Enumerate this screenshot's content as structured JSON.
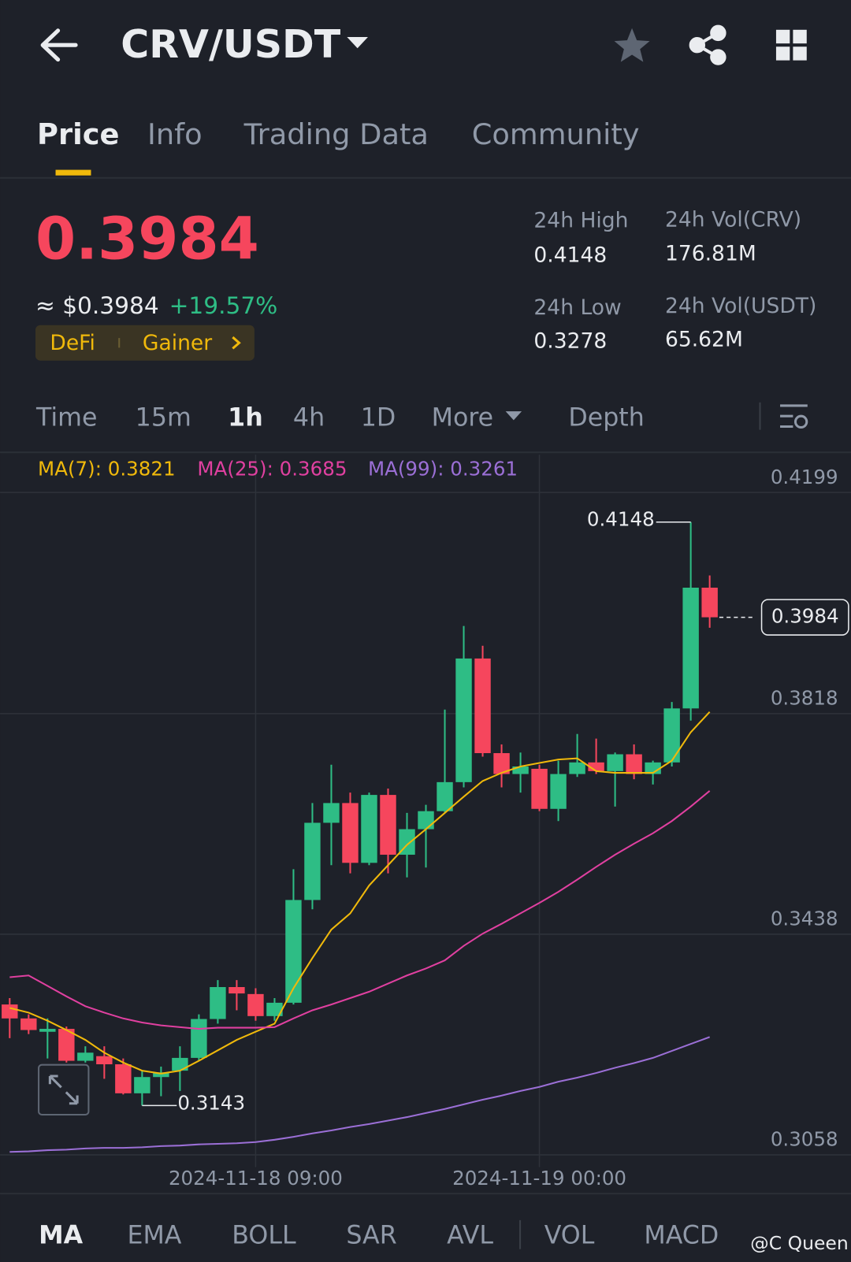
{
  "header": {
    "title": "CRV/USDT"
  },
  "tabs": [
    "Price",
    "Info",
    "Trading Data",
    "Community"
  ],
  "price": {
    "last": "0.3984",
    "usd": "≈ $0.3984",
    "change": "+19.57%",
    "tags": [
      "DeFi",
      "Gainer"
    ]
  },
  "stats": [
    {
      "label": "24h High",
      "value": "0.4148"
    },
    {
      "label": "24h Vol(CRV)",
      "value": "176.81M"
    },
    {
      "label": "24h Low",
      "value": "0.3278"
    },
    {
      "label": "24h Vol(USDT)",
      "value": "65.62M"
    }
  ],
  "intervals": [
    "Time",
    "15m",
    "1h",
    "4h",
    "1D",
    "More",
    "Depth"
  ],
  "indicators": [
    "MA",
    "EMA",
    "BOLL",
    "SAR",
    "AVL",
    "VOL",
    "MACD"
  ],
  "watermark": "@C Queen",
  "chart_data": {
    "type": "candlestick",
    "categories": [
      null,
      null,
      null,
      null,
      null,
      null,
      null,
      null,
      null,
      null,
      null,
      null,
      null,
      "2024-11-18 09:00",
      null,
      null,
      null,
      null,
      null,
      null,
      null,
      null,
      null,
      null,
      null,
      null,
      null,
      null,
      "2024-11-19 00:00",
      null,
      null,
      null,
      null,
      null,
      null,
      null,
      null,
      null
    ],
    "open": [
      0.3317,
      0.3293,
      0.327,
      0.3275,
      0.322,
      0.3228,
      0.3214,
      0.3164,
      0.3192,
      0.3203,
      0.3225,
      0.3292,
      0.3347,
      0.3335,
      0.3297,
      0.332,
      0.3497,
      0.363,
      0.3664,
      0.3561,
      0.3678,
      0.3575,
      0.3619,
      0.365,
      0.37,
      0.3913,
      0.375,
      0.3714,
      0.3723,
      0.3654,
      0.3714,
      0.3734,
      0.3719,
      0.3748,
      0.3714,
      0.3734,
      0.3827,
      0.4035
    ],
    "high": [
      0.3328,
      0.33,
      0.3293,
      0.3279,
      0.3245,
      0.3245,
      0.3224,
      0.3203,
      0.321,
      0.3245,
      0.33,
      0.3359,
      0.3359,
      0.3345,
      0.3328,
      0.355,
      0.3664,
      0.373,
      0.3682,
      0.3682,
      0.3689,
      0.3647,
      0.3661,
      0.3825,
      0.3969,
      0.3935,
      0.3765,
      0.3751,
      0.373,
      0.3737,
      0.3783,
      0.3775,
      0.3751,
      0.3765,
      0.3737,
      0.3838,
      0.4148,
      0.4056
    ],
    "low": [
      0.3259,
      0.3266,
      0.3224,
      0.3217,
      0.3217,
      0.3189,
      0.3162,
      0.3143,
      0.3159,
      0.3168,
      0.322,
      0.3284,
      0.3307,
      0.3289,
      0.3289,
      0.3317,
      0.3481,
      0.3557,
      0.3543,
      0.3557,
      0.3543,
      0.3536,
      0.3553,
      0.3647,
      0.3691,
      0.3744,
      0.3691,
      0.3682,
      0.365,
      0.3633,
      0.3709,
      0.3714,
      0.3658,
      0.3705,
      0.3696,
      0.3727,
      0.3806,
      0.3966
    ],
    "close": [
      0.3293,
      0.3273,
      0.3275,
      0.322,
      0.3234,
      0.3214,
      0.3164,
      0.3192,
      0.32,
      0.3225,
      0.3292,
      0.3347,
      0.3336,
      0.3297,
      0.332,
      0.3497,
      0.363,
      0.3664,
      0.3561,
      0.3678,
      0.3575,
      0.3619,
      0.365,
      0.37,
      0.3913,
      0.375,
      0.3714,
      0.3727,
      0.3654,
      0.3714,
      0.3734,
      0.3719,
      0.3748,
      0.3714,
      0.3734,
      0.3827,
      0.4035,
      0.3984
    ],
    "up_color": "#2ebd85",
    "down_color": "#f6465d",
    "series": [
      {
        "name": "MA(7): 0.3821",
        "color": "#f0b90b",
        "values": [
          0.3311,
          0.3303,
          0.3289,
          0.3273,
          0.3256,
          0.3234,
          0.3217,
          0.3203,
          0.3198,
          0.3203,
          0.322,
          0.3238,
          0.3256,
          0.327,
          0.3284,
          0.3345,
          0.3397,
          0.3446,
          0.3474,
          0.3522,
          0.3557,
          0.3592,
          0.3619,
          0.3647,
          0.3675,
          0.3702,
          0.3716,
          0.3727,
          0.3733,
          0.3739,
          0.3741,
          0.3719,
          0.3716,
          0.3716,
          0.3716,
          0.3737,
          0.3786,
          0.3821
        ]
      },
      {
        "name": "MA(25): 0.3685",
        "color": "#e040a0",
        "values": [
          0.3364,
          0.3367,
          0.3349,
          0.3331,
          0.3314,
          0.3303,
          0.3293,
          0.3286,
          0.3281,
          0.3278,
          0.3275,
          0.3277,
          0.3277,
          0.3277,
          0.3278,
          0.3293,
          0.3307,
          0.3317,
          0.3328,
          0.3339,
          0.3353,
          0.3367,
          0.3379,
          0.3393,
          0.3418,
          0.3439,
          0.3456,
          0.3474,
          0.3492,
          0.3511,
          0.3532,
          0.3554,
          0.3575,
          0.3594,
          0.3612,
          0.3633,
          0.3658,
          0.3685
        ]
      },
      {
        "name": "MA(99): 0.3261",
        "color": "#9b6fd6",
        "values": [
          0.3063,
          0.3064,
          0.3066,
          0.3067,
          0.3069,
          0.307,
          0.307,
          0.3071,
          0.3073,
          0.3074,
          0.3076,
          0.3077,
          0.3078,
          0.308,
          0.3084,
          0.3089,
          0.3095,
          0.31,
          0.3106,
          0.3111,
          0.3117,
          0.3123,
          0.313,
          0.3137,
          0.3145,
          0.3153,
          0.316,
          0.3168,
          0.3175,
          0.3184,
          0.3191,
          0.3199,
          0.3208,
          0.3216,
          0.3225,
          0.3237,
          0.3249,
          0.3261
        ]
      }
    ],
    "ylim": [
      0.3037,
      0.4264
    ],
    "yticks": [
      0.4199,
      0.3818,
      0.3438,
      0.3058
    ],
    "grid": true
  }
}
